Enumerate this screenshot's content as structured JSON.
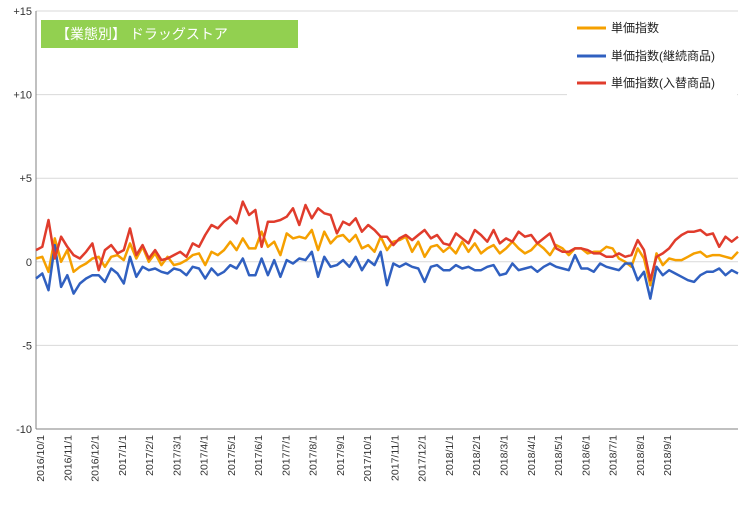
{
  "chart_data": {
    "type": "line",
    "title": "【業態別】 ドラッグストア",
    "ylim": [
      -10,
      15
    ],
    "yticks": [
      {
        "v": 15,
        "label": "+15"
      },
      {
        "v": 10,
        "label": "+10"
      },
      {
        "v": 5,
        "label": "+5"
      },
      {
        "v": 0,
        "label": "0"
      },
      {
        "v": -5,
        "label": "-5"
      },
      {
        "v": -10,
        "label": "-10"
      }
    ],
    "xticks": [
      "2016/10/1",
      "2016/11/1",
      "2016/12/1",
      "2017/1/1",
      "2017/2/1",
      "2017/3/1",
      "2017/4/1",
      "2017/5/1",
      "2017/6/1",
      "2017/7/1",
      "2017/8/1",
      "2017/9/1",
      "2017/10/1",
      "2017/11/1",
      "2017/12/1",
      "2018/1/1",
      "2018/2/1",
      "2018/3/1",
      "2018/4/1",
      "2018/5/1",
      "2018/6/1",
      "2018/7/1",
      "2018/8/1",
      "2018/9/1"
    ],
    "weeks_per_month": 4.35,
    "series": [
      {
        "name": "単価指数",
        "color": "#f5a000",
        "values": [
          0.2,
          0.3,
          -0.6,
          1.4,
          0.0,
          0.7,
          -0.6,
          -0.3,
          -0.1,
          0.2,
          0.3,
          -0.3,
          0.3,
          0.4,
          0.1,
          1.1,
          0.2,
          0.9,
          0.0,
          0.5,
          -0.2,
          0.3,
          -0.2,
          -0.1,
          0.1,
          0.4,
          0.5,
          -0.2,
          0.6,
          0.4,
          0.7,
          1.2,
          0.7,
          1.4,
          0.8,
          0.8,
          1.8,
          0.9,
          1.2,
          0.4,
          1.7,
          1.4,
          1.5,
          1.4,
          1.9,
          0.7,
          1.8,
          1.1,
          1.5,
          1.6,
          1.2,
          1.6,
          0.8,
          1.0,
          0.6,
          1.5,
          0.7,
          1.2,
          1.3,
          1.5,
          0.6,
          1.2,
          0.3,
          0.9,
          1.0,
          0.6,
          0.9,
          0.5,
          1.2,
          0.6,
          1.1,
          0.5,
          0.8,
          1.0,
          0.5,
          0.8,
          1.2,
          0.8,
          0.5,
          0.7,
          1.1,
          0.8,
          0.4,
          1.0,
          0.8,
          0.4,
          0.8,
          0.8,
          0.5,
          0.6,
          0.6,
          0.9,
          0.8,
          0.2,
          0.0,
          -0.3,
          0.8,
          0.2,
          -1.4,
          0.5,
          -0.2,
          0.2,
          0.1,
          0.1,
          0.3,
          0.5,
          0.6,
          0.3,
          0.4,
          0.4,
          0.3,
          0.2,
          0.6
        ]
      },
      {
        "name": "単価指数(継続商品)",
        "color": "#3060c0",
        "values": [
          -1.0,
          -0.7,
          -1.7,
          1.0,
          -1.5,
          -0.8,
          -1.9,
          -1.3,
          -1.0,
          -0.8,
          -0.8,
          -1.2,
          -0.4,
          -0.7,
          -1.3,
          0.3,
          -0.9,
          -0.3,
          -0.5,
          -0.4,
          -0.6,
          -0.7,
          -0.4,
          -0.5,
          -0.8,
          -0.3,
          -0.4,
          -1.0,
          -0.4,
          -0.8,
          -0.6,
          -0.2,
          -0.4,
          0.2,
          -0.8,
          -0.8,
          0.2,
          -0.8,
          0.1,
          -0.9,
          0.1,
          -0.1,
          0.2,
          0.1,
          0.6,
          -0.9,
          0.3,
          -0.3,
          -0.2,
          0.1,
          -0.3,
          0.3,
          -0.5,
          0.1,
          -0.2,
          0.6,
          -1.4,
          -0.1,
          -0.3,
          -0.1,
          -0.3,
          -0.4,
          -1.2,
          -0.3,
          -0.2,
          -0.5,
          -0.5,
          -0.2,
          -0.4,
          -0.3,
          -0.5,
          -0.5,
          -0.3,
          -0.2,
          -0.8,
          -0.7,
          -0.1,
          -0.5,
          -0.4,
          -0.3,
          -0.6,
          -0.3,
          -0.1,
          -0.3,
          -0.4,
          -0.5,
          0.4,
          -0.4,
          -0.4,
          -0.6,
          -0.1,
          -0.3,
          -0.4,
          -0.5,
          -0.1,
          -0.1,
          -1.1,
          -0.6,
          -2.2,
          -0.3,
          -0.8,
          -0.5,
          -0.7,
          -0.9,
          -1.1,
          -1.2,
          -0.8,
          -0.6,
          -0.6,
          -0.4,
          -0.8,
          -0.5,
          -0.7
        ]
      },
      {
        "name": "単価指数(入替商品)",
        "color": "#e03c2c",
        "values": [
          0.7,
          0.9,
          2.5,
          0.2,
          1.5,
          0.9,
          0.4,
          0.2,
          0.6,
          1.1,
          -0.5,
          0.7,
          1.0,
          0.5,
          0.7,
          2.0,
          0.4,
          1.0,
          0.2,
          0.7,
          0.1,
          0.2,
          0.4,
          0.6,
          0.3,
          1.1,
          0.9,
          1.6,
          2.2,
          2.0,
          2.4,
          2.7,
          2.3,
          3.6,
          2.8,
          3.1,
          0.9,
          2.4,
          2.4,
          2.5,
          2.7,
          3.2,
          2.2,
          3.4,
          2.6,
          3.2,
          2.9,
          2.8,
          1.7,
          2.4,
          2.2,
          2.6,
          1.8,
          2.2,
          1.9,
          1.5,
          1.5,
          1.0,
          1.4,
          1.6,
          1.3,
          1.6,
          1.9,
          1.4,
          1.6,
          1.1,
          1.0,
          1.7,
          1.4,
          1.1,
          1.9,
          1.6,
          1.2,
          1.9,
          1.1,
          1.4,
          1.2,
          1.8,
          1.5,
          1.6,
          1.1,
          1.4,
          1.7,
          0.8,
          0.6,
          0.6,
          0.8,
          0.8,
          0.7,
          0.5,
          0.5,
          0.3,
          0.3,
          0.5,
          0.3,
          0.4,
          1.3,
          0.7,
          -1.1,
          0.3,
          0.5,
          0.8,
          1.3,
          1.6,
          1.8,
          1.8,
          1.9,
          1.6,
          1.7,
          0.9,
          1.5,
          1.2,
          1.5
        ]
      }
    ]
  }
}
